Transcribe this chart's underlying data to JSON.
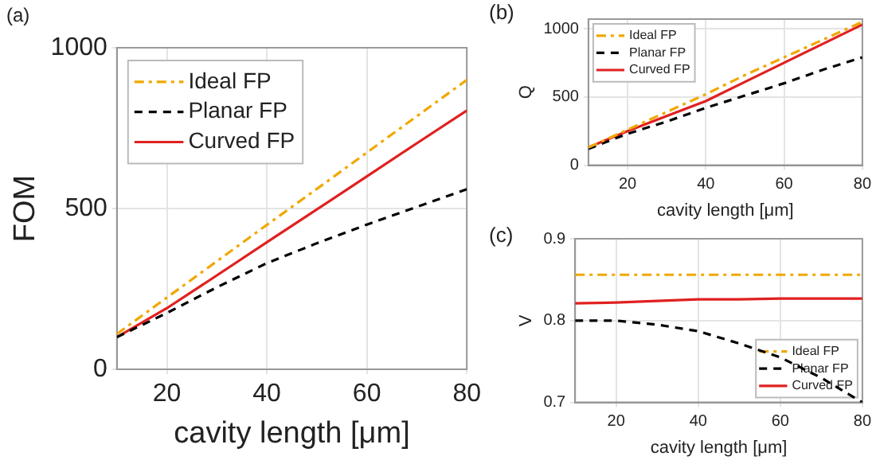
{
  "chart_data": [
    {
      "type": "line",
      "title": "(a)",
      "xlabel": "cavity length [μm]",
      "ylabel": "FOM",
      "x": [
        10,
        20,
        30,
        40,
        50,
        60,
        70,
        80
      ],
      "xlim": [
        10,
        80
      ],
      "xticks": [
        20,
        40,
        60,
        80
      ],
      "ylim": [
        0,
        1000
      ],
      "yticks": [
        0,
        500,
        1000
      ],
      "grid": true,
      "legend": "top left",
      "series": [
        {
          "name": "Ideal FP",
          "color": "#f0a800",
          "line_style": "dashdot",
          "values": [
            110,
            223,
            336,
            449,
            561,
            674,
            787,
            900
          ]
        },
        {
          "name": "Planar FP",
          "color": "#000000",
          "line_style": "dashed",
          "values": [
            100,
            175,
            255,
            330,
            392,
            450,
            505,
            560
          ]
        },
        {
          "name": "Curved FP",
          "color": "#e02020",
          "line_style": "solid",
          "values": [
            100,
            190,
            292,
            395,
            497,
            600,
            703,
            805
          ]
        }
      ]
    },
    {
      "type": "line",
      "title": "(b)",
      "xlabel": "cavity length [μm]",
      "ylabel": "Q",
      "x": [
        10,
        20,
        30,
        40,
        50,
        60,
        70,
        80
      ],
      "xlim": [
        10,
        80
      ],
      "xticks": [
        20,
        40,
        60,
        80
      ],
      "ylim": [
        0,
        1070
      ],
      "yticks": [
        0,
        500,
        1000
      ],
      "grid": true,
      "legend": "top left",
      "series": [
        {
          "name": "Ideal FP",
          "color": "#f0a800",
          "line_style": "dashdot",
          "values": [
            130,
            260,
            390,
            520,
            660,
            790,
            920,
            1050
          ]
        },
        {
          "name": "Planar FP",
          "color": "#000000",
          "line_style": "dashed",
          "values": [
            120,
            230,
            320,
            420,
            510,
            600,
            700,
            790
          ]
        },
        {
          "name": "Curved FP",
          "color": "#e02020",
          "line_style": "solid",
          "values": [
            130,
            250,
            360,
            470,
            610,
            750,
            890,
            1030
          ]
        }
      ]
    },
    {
      "type": "line",
      "title": "(c)",
      "xlabel": "cavity length [μm]",
      "ylabel": "V",
      "x": [
        10,
        20,
        30,
        40,
        50,
        60,
        70,
        80
      ],
      "xlim": [
        10,
        80
      ],
      "xticks": [
        20,
        40,
        60,
        80
      ],
      "ylim": [
        0.7,
        0.9
      ],
      "yticks": [
        0.7,
        0.8,
        0.9
      ],
      "grid": true,
      "legend": "bottom right",
      "series": [
        {
          "name": "Ideal FP",
          "color": "#f0a800",
          "line_style": "dashdot",
          "values": [
            0.856,
            0.856,
            0.856,
            0.856,
            0.856,
            0.856,
            0.856,
            0.856
          ]
        },
        {
          "name": "Planar FP",
          "color": "#000000",
          "line_style": "dashed",
          "values": [
            0.8,
            0.8,
            0.795,
            0.787,
            0.772,
            0.755,
            0.73,
            0.7
          ]
        },
        {
          "name": "Curved FP",
          "color": "#e02020",
          "line_style": "solid",
          "values": [
            0.821,
            0.822,
            0.824,
            0.826,
            0.826,
            0.827,
            0.827,
            0.827
          ]
        }
      ]
    }
  ]
}
